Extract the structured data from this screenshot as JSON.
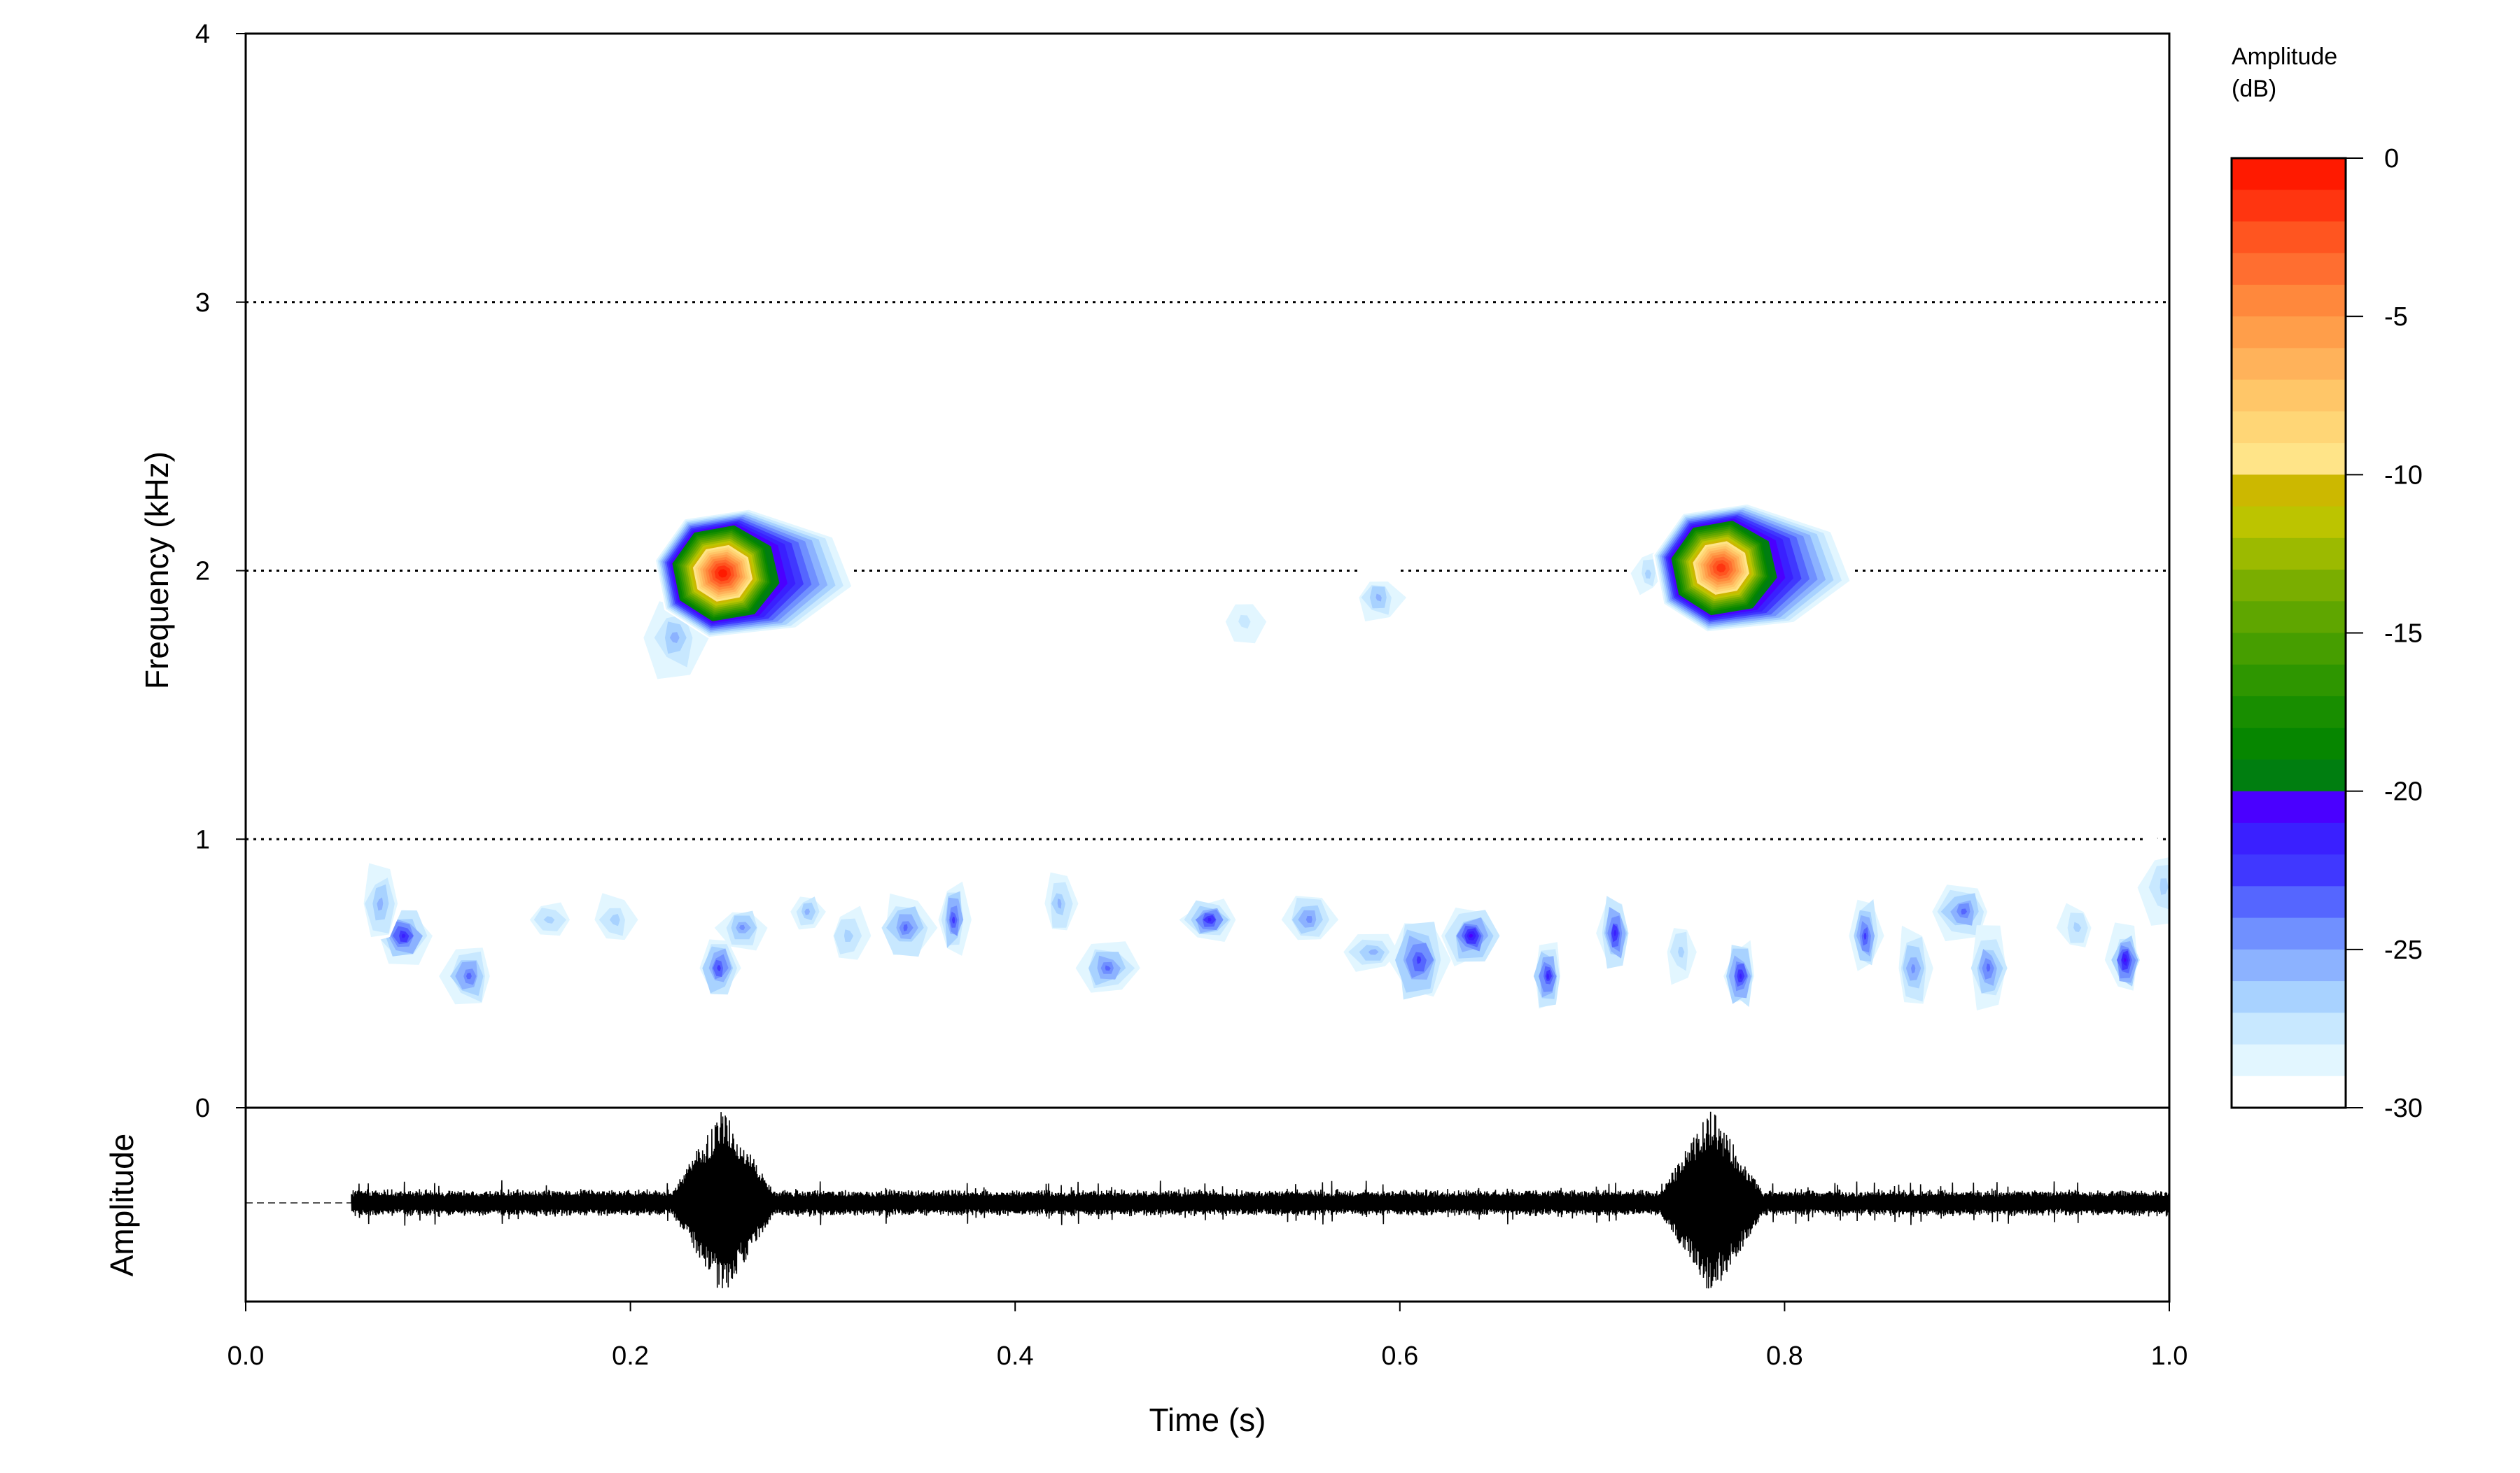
{
  "chart_data": {
    "type": "heatmap",
    "subtype": "spectrogram with oscillogram",
    "xlabel": "Time (s)",
    "ylabel": "Frequency (kHz)",
    "ylabel_wave": "Amplitude",
    "xlim": [
      0,
      1
    ],
    "ylim": [
      0,
      4
    ],
    "x_ticks": [
      "0.0",
      "0.2",
      "0.4",
      "0.6",
      "0.8",
      "1.0"
    ],
    "y_ticks": [
      "0",
      "1",
      "2",
      "3",
      "4"
    ],
    "grid": "horizontal dotted at 1, 2, 3 kHz",
    "colorbar": {
      "title_line1": "Amplitude",
      "title_line2": "(dB)",
      "range": [
        -30,
        0
      ],
      "ticks": [
        "0",
        "-5",
        "-10",
        "-15",
        "-20",
        "-25",
        "-30"
      ],
      "colors_top_to_bottom": [
        "#ff1a00",
        "#ff3510",
        "#ff5520",
        "#ff6e30",
        "#ff883c",
        "#ff9e4a",
        "#ffb25a",
        "#ffc668",
        "#ffd676",
        "#ffe488",
        "#ccb800",
        "#bcc400",
        "#9cba00",
        "#7aae00",
        "#5fa600",
        "#469e00",
        "#2e9600",
        "#188e00",
        "#068600",
        "#007e10",
        "#4a00ff",
        "#3a20ff",
        "#4038ff",
        "#5566ff",
        "#7090ff",
        "#8cb2ff",
        "#a8d2ff",
        "#c8e8ff",
        "#e2f6ff",
        "#ffffff"
      ]
    },
    "calls": [
      {
        "time": 0.248,
        "freq_khz": 1.99,
        "peak_db": -1
      },
      {
        "time": 0.767,
        "freq_khz": 2.01,
        "peak_db": -2
      }
    ],
    "noise_patches": [
      [
        0.082,
        0.64,
        -22
      ],
      [
        0.07,
        0.76,
        -26
      ],
      [
        0.116,
        0.49,
        -24
      ],
      [
        0.158,
        0.7,
        -27
      ],
      [
        0.192,
        0.7,
        -27
      ],
      [
        0.246,
        0.52,
        -23
      ],
      [
        0.258,
        0.67,
        -25
      ],
      [
        0.292,
        0.73,
        -26
      ],
      [
        0.313,
        0.64,
        -27
      ],
      [
        0.343,
        0.67,
        -24
      ],
      [
        0.368,
        0.7,
        -23
      ],
      [
        0.423,
        0.76,
        -26
      ],
      [
        0.448,
        0.52,
        -24
      ],
      [
        0.501,
        0.7,
        -22
      ],
      [
        0.553,
        0.7,
        -25
      ],
      [
        0.586,
        0.58,
        -26
      ],
      [
        0.61,
        0.55,
        -23
      ],
      [
        0.637,
        0.64,
        -21
      ],
      [
        0.677,
        0.49,
        -22
      ],
      [
        0.712,
        0.65,
        -22
      ],
      [
        0.746,
        0.58,
        -27
      ],
      [
        0.777,
        0.49,
        -22
      ],
      [
        0.842,
        0.64,
        -23
      ],
      [
        0.867,
        0.52,
        -25
      ],
      [
        0.893,
        0.73,
        -24
      ],
      [
        0.906,
        0.52,
        -24
      ],
      [
        0.952,
        0.67,
        -27
      ],
      [
        0.977,
        0.55,
        -21
      ],
      [
        0.997,
        0.82,
        -27
      ],
      [
        0.589,
        1.9,
        -26
      ],
      [
        0.519,
        1.81,
        -28
      ],
      [
        0.729,
        1.99,
        -27
      ],
      [
        0.223,
        1.75,
        -26
      ]
    ],
    "waveform": {
      "signal_start_s": 0.055,
      "pulse_times_s": [
        0.248,
        0.762
      ],
      "pulse_halfwidth_s": 0.028
    }
  }
}
